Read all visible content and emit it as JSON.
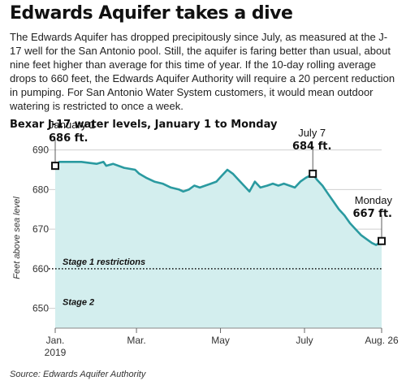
{
  "headline": "Edwards Aquifer takes a dive",
  "dek": "The Edwards Aquifer has dropped precipitously since July, as measured at the J-17 well for the San Antonio pool.  Still, the aquifer is faring better than usual, about nine feet higher than average for this time of year. If the 10-day rolling average drops to 660 feet, the Edwards Aquifer Authority will require a 20 percent reduction in pumping. For San Antonio Water System customers, it would mean outdoor watering is restricted to once a week.",
  "source": "Source: Edwards Aquifer Authority",
  "colors": {
    "line": "#2a9aa0",
    "fill": "#d3eeee",
    "grid": "#cfcfcf",
    "threshold": "#111111"
  },
  "chart_data": {
    "type": "area",
    "title": "Bexar J-17 water levels, January 1 to Monday",
    "ylabel": "Feet above sea level",
    "ylim": [
      645,
      693
    ],
    "yticks": [
      650,
      660,
      670,
      680,
      690
    ],
    "grid": true,
    "x_start": "2019-01-01",
    "x_end": "2019-08-26",
    "xticks": [
      {
        "date": "2019-01-01",
        "label": "Jan.",
        "label2": "2019"
      },
      {
        "date": "2019-03-01",
        "label": "Mar.",
        "label2": ""
      },
      {
        "date": "2019-05-01",
        "label": "May",
        "label2": ""
      },
      {
        "date": "2019-07-01",
        "label": "July",
        "label2": ""
      },
      {
        "date": "2019-08-26",
        "label": "Aug. 26",
        "label2": ""
      }
    ],
    "threshold": {
      "value": 660,
      "label": "Stage 1 restrictions",
      "style": "dotted"
    },
    "bands": [
      {
        "value": 650,
        "label": "Stage 2"
      }
    ],
    "series": [
      {
        "x": [
          "2019-01-01",
          "2019-01-04",
          "2019-01-10",
          "2019-01-20",
          "2019-01-31",
          "2019-02-05",
          "2019-02-07",
          "2019-02-12",
          "2019-02-20",
          "2019-02-28",
          "2019-03-03",
          "2019-03-08",
          "2019-03-14",
          "2019-03-20",
          "2019-03-26",
          "2019-04-01",
          "2019-04-04",
          "2019-04-08",
          "2019-04-12",
          "2019-04-16",
          "2019-04-20",
          "2019-04-24",
          "2019-04-28",
          "2019-05-02",
          "2019-05-06",
          "2019-05-10",
          "2019-05-14",
          "2019-05-18",
          "2019-05-22",
          "2019-05-26",
          "2019-05-30",
          "2019-06-04",
          "2019-06-08",
          "2019-06-12",
          "2019-06-16",
          "2019-06-20",
          "2019-06-24",
          "2019-06-28",
          "2019-07-02",
          "2019-07-05",
          "2019-07-07",
          "2019-07-10",
          "2019-07-14",
          "2019-07-18",
          "2019-07-22",
          "2019-07-26",
          "2019-07-30",
          "2019-08-03",
          "2019-08-07",
          "2019-08-11",
          "2019-08-15",
          "2019-08-19",
          "2019-08-22",
          "2019-08-26"
        ],
        "y": [
          686,
          687,
          687,
          687,
          686.5,
          687,
          686,
          686.5,
          685.5,
          685,
          684,
          683,
          682,
          681.5,
          680.5,
          680,
          679.5,
          680,
          681,
          680.5,
          681,
          681.5,
          682,
          683.5,
          685,
          684,
          682.5,
          681,
          679.5,
          682,
          680.5,
          681,
          681.5,
          681,
          681.5,
          681,
          680.5,
          682,
          683,
          683.5,
          684,
          682.5,
          681,
          679,
          677,
          675,
          673.5,
          671.5,
          670,
          668.5,
          667.5,
          666.5,
          666,
          667
        ]
      }
    ],
    "annotations": [
      {
        "date": "2019-01-01",
        "value": 686,
        "label": "January 1",
        "value_label": "686 ft.",
        "align": "left"
      },
      {
        "date": "2019-07-07",
        "value": 684,
        "label": "July 7",
        "value_label": "684 ft.",
        "align": "center"
      },
      {
        "date": "2019-08-26",
        "value": 667,
        "label": "Monday",
        "value_label": "667 ft.",
        "align": "right"
      }
    ]
  }
}
